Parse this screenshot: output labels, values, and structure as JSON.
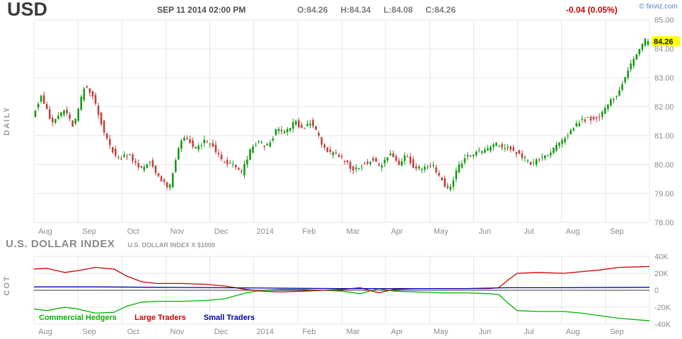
{
  "header": {
    "symbol": "USD",
    "timestamp": "SEP 11 2014 02:00 PM",
    "open": "O:84.26",
    "high": "H:84.34",
    "low": "L:84.08",
    "close": "C:84.26",
    "change": "-0.04 (0.05%)",
    "change_color": "#cc0000",
    "brand": "© finviz.com"
  },
  "section": {
    "title": "U.S. DOLLAR INDEX",
    "subtitle": "U.S. DOLLAR INDEX X $1000"
  },
  "chart_data": [
    {
      "type": "candlestick",
      "name": "USD daily candlestick chart",
      "period_label": "DAILY",
      "y_ticks": [
        "85.00",
        "84.00",
        "83.00",
        "82.00",
        "81.00",
        "80.00",
        "79.00",
        "78.00"
      ],
      "ylim": [
        78,
        85
      ],
      "months": [
        "Aug",
        "Sep",
        "Oct",
        "Nov",
        "Dec",
        "2014",
        "Feb",
        "Mar",
        "Apr",
        "May",
        "Jun",
        "Jul",
        "Aug",
        "Sep"
      ],
      "last_price_label": "84.26",
      "last_price": 84.26,
      "tag_color": "#ffff00",
      "ohlc": {
        "open": 84.26,
        "high": 84.34,
        "low": 84.08,
        "close": 84.26
      },
      "up_color": "#169a16",
      "down_color": "#c04040",
      "trend_keyframes": [
        [
          0.0,
          81.7
        ],
        [
          0.014,
          82.4
        ],
        [
          0.031,
          81.4
        ],
        [
          0.051,
          81.9
        ],
        [
          0.067,
          81.3
        ],
        [
          0.085,
          82.7
        ],
        [
          0.1,
          82.3
        ],
        [
          0.12,
          80.9
        ],
        [
          0.138,
          80.2
        ],
        [
          0.157,
          80.4
        ],
        [
          0.175,
          79.8
        ],
        [
          0.192,
          80.1
        ],
        [
          0.211,
          79.4
        ],
        [
          0.224,
          79.2
        ],
        [
          0.241,
          80.8
        ],
        [
          0.251,
          81.0
        ],
        [
          0.264,
          80.5
        ],
        [
          0.28,
          80.8
        ],
        [
          0.295,
          80.6
        ],
        [
          0.31,
          80.1
        ],
        [
          0.326,
          80.0
        ],
        [
          0.341,
          79.7
        ],
        [
          0.356,
          80.5
        ],
        [
          0.368,
          80.8
        ],
        [
          0.382,
          80.6
        ],
        [
          0.399,
          81.2
        ],
        [
          0.414,
          81.1
        ],
        [
          0.428,
          81.5
        ],
        [
          0.441,
          81.2
        ],
        [
          0.454,
          81.5
        ],
        [
          0.468,
          80.9
        ],
        [
          0.483,
          80.4
        ],
        [
          0.497,
          80.3
        ],
        [
          0.51,
          80.1
        ],
        [
          0.525,
          79.8
        ],
        [
          0.54,
          80.0
        ],
        [
          0.554,
          80.2
        ],
        [
          0.568,
          79.9
        ],
        [
          0.583,
          80.4
        ],
        [
          0.598,
          80.0
        ],
        [
          0.609,
          80.4
        ],
        [
          0.623,
          79.9
        ],
        [
          0.637,
          79.9
        ],
        [
          0.652,
          80.0
        ],
        [
          0.667,
          79.5
        ],
        [
          0.68,
          79.1
        ],
        [
          0.694,
          79.9
        ],
        [
          0.709,
          80.3
        ],
        [
          0.724,
          80.4
        ],
        [
          0.74,
          80.5
        ],
        [
          0.755,
          80.7
        ],
        [
          0.77,
          80.6
        ],
        [
          0.784,
          80.5
        ],
        [
          0.798,
          80.3
        ],
        [
          0.813,
          80.0
        ],
        [
          0.828,
          80.2
        ],
        [
          0.844,
          80.4
        ],
        [
          0.86,
          80.7
        ],
        [
          0.876,
          81.1
        ],
        [
          0.892,
          81.5
        ],
        [
          0.908,
          81.6
        ],
        [
          0.924,
          81.6
        ],
        [
          0.938,
          82.0
        ],
        [
          0.952,
          82.4
        ],
        [
          0.966,
          82.9
        ],
        [
          0.977,
          83.5
        ],
        [
          0.989,
          84.0
        ],
        [
          1.0,
          84.26
        ]
      ]
    },
    {
      "type": "line",
      "name": "Commitments of Traders",
      "label": "COT",
      "y_ticks": [
        "40K",
        "20K",
        "0",
        "-20K",
        "-40K"
      ],
      "y_values": [
        40,
        20,
        0,
        -20,
        -40
      ],
      "ylim": [
        -40,
        40
      ],
      "months": [
        "Aug",
        "Sep",
        "Oct",
        "Nov",
        "Dec",
        "2014",
        "Feb",
        "Mar",
        "Apr",
        "May",
        "Jun",
        "Jul",
        "Aug",
        "Sep"
      ],
      "series": [
        {
          "name": "Commercial Hedgers",
          "color": "#00b200",
          "points": [
            [
              0.0,
              -22
            ],
            [
              0.02,
              -24
            ],
            [
              0.05,
              -20
            ],
            [
              0.07,
              -22
            ],
            [
              0.1,
              -27
            ],
            [
              0.13,
              -26
            ],
            [
              0.15,
              -19
            ],
            [
              0.175,
              -14
            ],
            [
              0.2,
              -13
            ],
            [
              0.24,
              -13
            ],
            [
              0.28,
              -12
            ],
            [
              0.31,
              -10
            ],
            [
              0.345,
              -3
            ],
            [
              0.37,
              0
            ],
            [
              0.4,
              1
            ],
            [
              0.44,
              1
            ],
            [
              0.47,
              0
            ],
            [
              0.5,
              -1
            ],
            [
              0.53,
              -4
            ],
            [
              0.56,
              2
            ],
            [
              0.585,
              -1
            ],
            [
              0.62,
              -2
            ],
            [
              0.66,
              -3
            ],
            [
              0.7,
              -3
            ],
            [
              0.74,
              -4
            ],
            [
              0.755,
              -5
            ],
            [
              0.77,
              -15
            ],
            [
              0.785,
              -24
            ],
            [
              0.82,
              -25
            ],
            [
              0.86,
              -25
            ],
            [
              0.89,
              -27
            ],
            [
              0.92,
              -30
            ],
            [
              0.95,
              -33
            ],
            [
              1.0,
              -36
            ]
          ]
        },
        {
          "name": "Large Traders",
          "color": "#cc0000",
          "points": [
            [
              0.0,
              25
            ],
            [
              0.02,
              26
            ],
            [
              0.05,
              21
            ],
            [
              0.07,
              23
            ],
            [
              0.1,
              27
            ],
            [
              0.13,
              25
            ],
            [
              0.15,
              17
            ],
            [
              0.175,
              10
            ],
            [
              0.2,
              8
            ],
            [
              0.24,
              8
            ],
            [
              0.28,
              7
            ],
            [
              0.31,
              5
            ],
            [
              0.345,
              1
            ],
            [
              0.37,
              -1
            ],
            [
              0.4,
              -2
            ],
            [
              0.44,
              -1
            ],
            [
              0.47,
              0
            ],
            [
              0.5,
              1
            ],
            [
              0.53,
              3
            ],
            [
              0.56,
              -3
            ],
            [
              0.585,
              1
            ],
            [
              0.62,
              2
            ],
            [
              0.66,
              2
            ],
            [
              0.7,
              2
            ],
            [
              0.74,
              2
            ],
            [
              0.755,
              3
            ],
            [
              0.77,
              12
            ],
            [
              0.785,
              20
            ],
            [
              0.82,
              21
            ],
            [
              0.86,
              20
            ],
            [
              0.89,
              22
            ],
            [
              0.92,
              24
            ],
            [
              0.95,
              27
            ],
            [
              1.0,
              28
            ]
          ]
        },
        {
          "name": "Small Traders",
          "color": "#0000b2",
          "points": [
            [
              0.0,
              4
            ],
            [
              0.1,
              4
            ],
            [
              0.2,
              3.5
            ],
            [
              0.3,
              3
            ],
            [
              0.4,
              2.5
            ],
            [
              0.5,
              2
            ],
            [
              0.6,
              2
            ],
            [
              0.7,
              2
            ],
            [
              0.77,
              3
            ],
            [
              0.85,
              3
            ],
            [
              1.0,
              3.5
            ]
          ]
        }
      ]
    }
  ]
}
